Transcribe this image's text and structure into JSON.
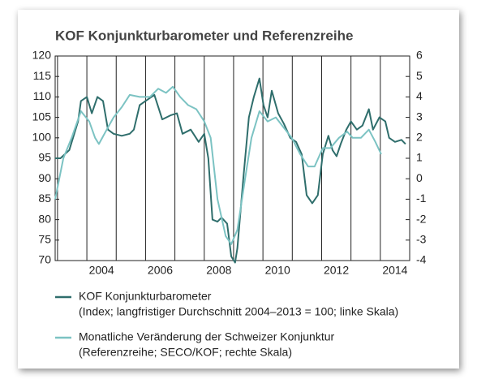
{
  "chart_data": {
    "type": "line",
    "title": "KOF Konjunkturbarometer und Referenzreihe",
    "xlim": [
      2002.92,
      2015.0
    ],
    "xticks": [
      {
        "value": 2004.5,
        "label": "2004"
      },
      {
        "value": 2006.5,
        "label": "2006"
      },
      {
        "value": 2008.5,
        "label": "2008"
      },
      {
        "value": 2010.5,
        "label": "2010"
      },
      {
        "value": 2012.5,
        "label": "2012"
      },
      {
        "value": 2014.5,
        "label": "2014"
      }
    ],
    "xgrid": [
      2003,
      2004,
      2005,
      2006,
      2007,
      2008,
      2009,
      2010,
      2011,
      2012,
      2013,
      2014
    ],
    "ylim": [
      70,
      120
    ],
    "yticks": [
      70,
      75,
      80,
      85,
      90,
      95,
      100,
      105,
      110,
      115,
      120
    ],
    "y2lim": [
      -4,
      6
    ],
    "y2ticks": [
      -4,
      -3,
      -2,
      -1,
      0,
      1,
      2,
      3,
      4,
      5,
      6
    ],
    "series": [
      {
        "name": "KOF Konjunkturbarometer",
        "note": "(Index; langfristiger Durchschnitt 2004–2013 = 100; linke Skala)",
        "color": "#2f6e6c",
        "axis": "y",
        "x": [
          2002.92,
          2003.1,
          2003.4,
          2003.7,
          2003.8,
          2004.0,
          2004.17,
          2004.36,
          2004.55,
          2004.72,
          2004.91,
          2005.19,
          2005.46,
          2005.6,
          2005.8,
          2006.0,
          2006.3,
          2006.57,
          2006.85,
          2007.07,
          2007.26,
          2007.54,
          2007.81,
          2008.0,
          2008.14,
          2008.28,
          2008.45,
          2008.59,
          2008.78,
          2008.92,
          2009.05,
          2009.13,
          2009.33,
          2009.52,
          2009.69,
          2009.88,
          2010.02,
          2010.16,
          2010.3,
          2010.52,
          2010.71,
          2010.93,
          2011.13,
          2011.32,
          2011.49,
          2011.68,
          2011.87,
          2012.04,
          2012.23,
          2012.37,
          2012.51,
          2012.65,
          2012.84,
          2013.0,
          2013.2,
          2013.39,
          2013.61,
          2013.75,
          2013.97,
          2014.17,
          2014.3,
          2014.5,
          2014.72,
          2014.86
        ],
        "values": [
          95,
          95,
          97,
          104,
          109,
          110,
          106,
          110,
          109,
          102,
          101,
          100.5,
          101,
          102,
          108,
          109,
          110.5,
          104.5,
          105.5,
          106,
          101,
          102,
          99,
          101,
          95,
          80,
          79.5,
          80.5,
          79,
          71,
          69.5,
          73,
          90,
          105,
          110,
          114.5,
          108,
          105,
          111.5,
          106,
          103.5,
          100,
          99,
          96,
          86,
          84,
          86,
          96,
          100.5,
          97,
          95.5,
          98.5,
          102,
          104,
          102,
          103,
          107,
          102,
          105,
          104,
          100,
          99,
          99.5,
          98.5
        ]
      },
      {
        "name": "Monatliche Veränderung der Schweizer Konjunktur",
        "note": "(Referenzreihe; SECO/KOF; rechte Skala)",
        "color": "#7cc3c3",
        "axis": "y2",
        "x": [
          2002.92,
          2003.2,
          2003.48,
          2003.8,
          2004.08,
          2004.28,
          2004.41,
          2004.64,
          2004.91,
          2005.19,
          2005.46,
          2005.8,
          2006.15,
          2006.43,
          2006.7,
          2006.93,
          2007.18,
          2007.45,
          2007.73,
          2008.0,
          2008.22,
          2008.45,
          2008.73,
          2008.92,
          2009.13,
          2009.39,
          2009.61,
          2009.88,
          2010.16,
          2010.44,
          2010.71,
          2010.98,
          2011.27,
          2011.54,
          2011.76,
          2012.04,
          2012.3,
          2012.59,
          2012.87,
          2013.06,
          2013.34,
          2013.61,
          2013.83,
          2014.03
        ],
        "values": [
          -1,
          1,
          2,
          3.3,
          2.8,
          2,
          1.7,
          2.3,
          3,
          3.5,
          4.1,
          4,
          4,
          4.4,
          4.2,
          4.5,
          4,
          3.6,
          3.4,
          2.8,
          2,
          -1,
          -2.8,
          -3.2,
          -2.5,
          0,
          2,
          3.3,
          2.8,
          3,
          2.5,
          2,
          1.2,
          0.6,
          0.6,
          1.5,
          1.5,
          2,
          2.3,
          2,
          2,
          2.4,
          1.8,
          1.2
        ]
      }
    ]
  }
}
